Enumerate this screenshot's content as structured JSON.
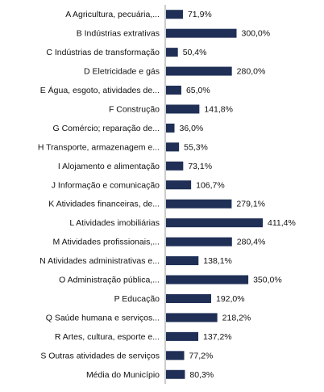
{
  "colors": {
    "bar": "#1f2f55",
    "text": "#111111",
    "axis": "#999999"
  },
  "chart_data": {
    "type": "bar",
    "orientation": "horizontal",
    "title": "",
    "xlabel": "",
    "ylabel": "",
    "grid": false,
    "legend": "none",
    "xlim": [
      0,
      411.4
    ],
    "categories": [
      "A Agricultura, pecuária,...",
      "B Indústrias extrativas",
      "C Indústrias de transformação",
      "D Eletricidade e gás",
      "E Água, esgoto, atividades de...",
      "F Construção",
      "G Comércio; reparação de...",
      "H Transporte, armazenagem e...",
      "I Alojamento e alimentação",
      "J Informação e comunicação",
      "K Atividades financeiras, de...",
      "L Atividades imobiliárias",
      "M Atividades profissionais,...",
      "N Atividades administrativas e...",
      "O Administração pública,...",
      "P Educação",
      "Q Saúde humana e serviços...",
      "R Artes, cultura, esporte e...",
      "S Outras atividades de serviços",
      "Média do Município"
    ],
    "values": [
      71.9,
      300.0,
      50.4,
      280.0,
      65.0,
      141.8,
      36.0,
      55.3,
      73.1,
      106.7,
      279.1,
      411.4,
      280.4,
      138.1,
      350.0,
      192.0,
      218.2,
      137.2,
      77.2,
      80.3
    ],
    "data_labels": [
      "71,9%",
      "300,0%",
      "50,4%",
      "280,0%",
      "65,0%",
      "141,8%",
      "36,0%",
      "55,3%",
      "73,1%",
      "106,7%",
      "279,1%",
      "411,4%",
      "280,4%",
      "138,1%",
      "350,0%",
      "192,0%",
      "218,2%",
      "137,2%",
      "77,2%",
      "80,3%"
    ]
  }
}
